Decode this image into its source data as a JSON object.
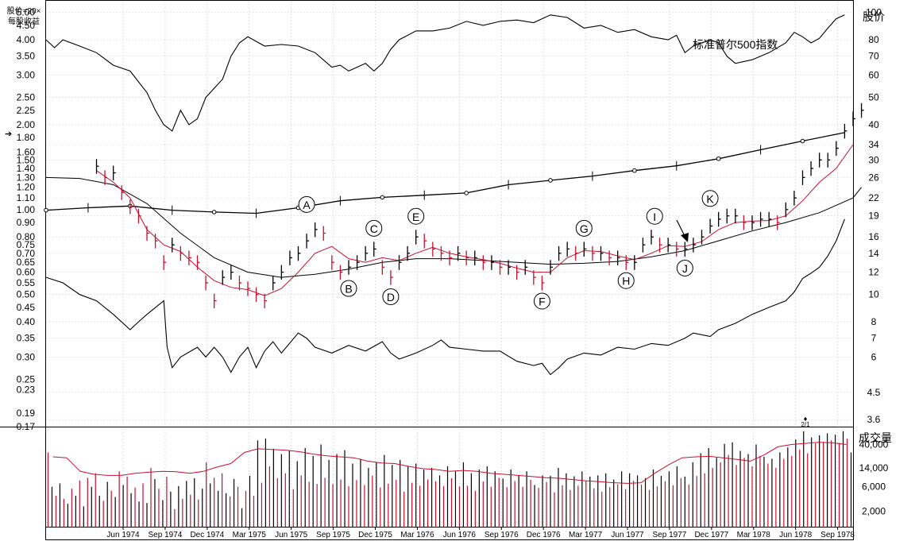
{
  "chart_data": {
    "type": "line",
    "price_panel": {
      "left_header": [
        "股价=20×",
        "每股收益"
      ],
      "left_ticks": [
        "5.00",
        "4.50",
        "4.00",
        "3.50",
        "3.00",
        "2.50",
        "2.25",
        "2.00",
        "1.80",
        "1.60",
        "1.50",
        "1.40",
        "1.30",
        "1.20",
        "1.10",
        "1.00",
        "0.90",
        "0.80",
        "0.75",
        "0.70",
        "0.65",
        "0.60",
        "0.55",
        "0.50",
        "0.45",
        "0.40",
        "0.35",
        "0.30",
        "0.25",
        "0.23",
        "0.19",
        "0.17"
      ],
      "right_title": "股价",
      "right_ticks": [
        "100",
        "80",
        "70",
        "60",
        "50",
        "40",
        "34",
        "30",
        "26",
        "22",
        "19",
        "16",
        "14",
        "12",
        "10",
        "8",
        "7",
        "6",
        "4.5",
        "3.6"
      ],
      "scale": "log",
      "index_label": "标准普尔500指数",
      "left_arrow": "➔",
      "annotations": [
        "A",
        "B",
        "C",
        "D",
        "E",
        "F",
        "G",
        "H",
        "I",
        "J",
        "K"
      ],
      "bottom_marker": {
        "symbol": "♦",
        "text": "2/1"
      }
    },
    "volume_panel": {
      "title": "成交量",
      "ticks": [
        "40,000",
        "14,000",
        "6,000",
        "2,000"
      ]
    },
    "x_ticks": [
      "Jun 1974",
      "Sep 1974",
      "Dec 1974",
      "Mar 1975",
      "Jun 1975",
      "Sep 1975",
      "Dec 1975",
      "Mar 1976",
      "Jun 1976",
      "Sep 1976",
      "Dec 1976",
      "Mar 1977",
      "Jun 1977",
      "Sep 1977",
      "Dec 1977",
      "Mar 1978",
      "Jun 1978",
      "Sep 1978"
    ],
    "price_weekly": [
      [
        1974.3,
        28.5
      ],
      [
        1974.35,
        26
      ],
      [
        1974.4,
        27
      ],
      [
        1974.45,
        23
      ],
      [
        1974.5,
        20.5
      ],
      [
        1974.55,
        19
      ],
      [
        1974.6,
        16.5
      ],
      [
        1974.65,
        15.5
      ],
      [
        1974.7,
        13
      ],
      [
        1974.75,
        15
      ],
      [
        1974.8,
        14
      ],
      [
        1974.85,
        13.5
      ],
      [
        1974.9,
        13
      ],
      [
        1974.95,
        11
      ],
      [
        1975.0,
        9.5
      ],
      [
        1975.05,
        11.5
      ],
      [
        1975.1,
        12
      ],
      [
        1975.15,
        11
      ],
      [
        1975.2,
        10.5
      ],
      [
        1975.25,
        10
      ],
      [
        1975.3,
        9.5
      ],
      [
        1975.35,
        11
      ],
      [
        1975.4,
        12
      ],
      [
        1975.45,
        13.5
      ],
      [
        1975.5,
        14
      ],
      [
        1975.55,
        15.5
      ],
      [
        1975.6,
        17
      ],
      [
        1975.65,
        16.5
      ],
      [
        1975.7,
        13
      ],
      [
        1975.75,
        12
      ],
      [
        1975.8,
        12.5
      ],
      [
        1975.85,
        13
      ],
      [
        1975.9,
        14
      ],
      [
        1975.95,
        14.5
      ],
      [
        1976.0,
        12.5
      ],
      [
        1976.05,
        11.5
      ],
      [
        1976.1,
        13
      ],
      [
        1976.15,
        14
      ],
      [
        1976.2,
        16
      ],
      [
        1976.25,
        15.5
      ],
      [
        1976.3,
        14.5
      ],
      [
        1976.35,
        14
      ],
      [
        1976.4,
        13.5
      ],
      [
        1976.45,
        14
      ],
      [
        1976.5,
        13.5
      ],
      [
        1976.55,
        13.5
      ],
      [
        1976.6,
        13
      ],
      [
        1976.65,
        13
      ],
      [
        1976.7,
        12.5
      ],
      [
        1976.75,
        12.5
      ],
      [
        1976.8,
        12
      ],
      [
        1976.85,
        12.5
      ],
      [
        1976.9,
        11.5
      ],
      [
        1976.95,
        11
      ],
      [
        1977.0,
        12.5
      ],
      [
        1977.05,
        14
      ],
      [
        1977.1,
        14.5
      ],
      [
        1977.15,
        14
      ],
      [
        1977.2,
        14.5
      ],
      [
        1977.25,
        14
      ],
      [
        1977.3,
        14
      ],
      [
        1977.35,
        13.5
      ],
      [
        1977.4,
        13.5
      ],
      [
        1977.45,
        13
      ],
      [
        1977.5,
        13
      ],
      [
        1977.55,
        15
      ],
      [
        1977.6,
        16
      ],
      [
        1977.65,
        15
      ],
      [
        1977.7,
        15
      ],
      [
        1977.75,
        14.5
      ],
      [
        1977.8,
        14.5
      ],
      [
        1977.85,
        15
      ],
      [
        1977.9,
        16
      ],
      [
        1977.95,
        17.5
      ],
      [
        1978.0,
        18.5
      ],
      [
        1978.05,
        19
      ],
      [
        1978.1,
        19
      ],
      [
        1978.15,
        18
      ],
      [
        1978.2,
        18
      ],
      [
        1978.25,
        18.5
      ],
      [
        1978.3,
        18.5
      ],
      [
        1978.35,
        18
      ],
      [
        1978.4,
        20
      ],
      [
        1978.45,
        22
      ],
      [
        1978.5,
        26
      ],
      [
        1978.55,
        28
      ],
      [
        1978.6,
        30
      ],
      [
        1978.65,
        30
      ],
      [
        1978.7,
        33
      ],
      [
        1978.75,
        38
      ],
      [
        1978.8,
        42
      ],
      [
        1978.85,
        45
      ]
    ],
    "sp500": [
      [
        1974.0,
        80
      ],
      [
        1974.05,
        75
      ],
      [
        1974.1,
        80
      ],
      [
        1974.2,
        76
      ],
      [
        1974.3,
        72
      ],
      [
        1974.4,
        65
      ],
      [
        1974.5,
        62
      ],
      [
        1974.6,
        52
      ],
      [
        1974.65,
        45
      ],
      [
        1974.7,
        40
      ],
      [
        1974.75,
        38
      ],
      [
        1974.8,
        45
      ],
      [
        1974.85,
        40
      ],
      [
        1974.9,
        42
      ],
      [
        1974.95,
        50
      ],
      [
        1975.05,
        58
      ],
      [
        1975.1,
        70
      ],
      [
        1975.15,
        78
      ],
      [
        1975.2,
        82
      ],
      [
        1975.3,
        76
      ],
      [
        1975.4,
        77
      ],
      [
        1975.5,
        76
      ],
      [
        1975.6,
        72
      ],
      [
        1975.7,
        64
      ],
      [
        1975.75,
        65
      ],
      [
        1975.8,
        62
      ],
      [
        1975.9,
        66
      ],
      [
        1975.95,
        62
      ],
      [
        1976.0,
        66
      ],
      [
        1976.05,
        74
      ],
      [
        1976.1,
        80
      ],
      [
        1976.2,
        86
      ],
      [
        1976.3,
        86
      ],
      [
        1976.4,
        88
      ],
      [
        1976.5,
        93
      ],
      [
        1976.6,
        90
      ],
      [
        1976.7,
        93
      ],
      [
        1976.8,
        94
      ],
      [
        1976.9,
        92
      ],
      [
        1977.0,
        98
      ],
      [
        1977.1,
        96
      ],
      [
        1977.2,
        88
      ],
      [
        1977.3,
        90
      ],
      [
        1977.4,
        85
      ],
      [
        1977.5,
        87
      ],
      [
        1977.6,
        82
      ],
      [
        1977.7,
        80
      ],
      [
        1977.75,
        83
      ],
      [
        1977.8,
        72
      ],
      [
        1977.85,
        76
      ],
      [
        1977.95,
        80
      ],
      [
        1978.0,
        78
      ],
      [
        1978.05,
        70
      ],
      [
        1978.1,
        66
      ],
      [
        1978.2,
        68
      ],
      [
        1978.3,
        72
      ],
      [
        1978.4,
        78
      ],
      [
        1978.45,
        85
      ],
      [
        1978.5,
        82
      ],
      [
        1978.55,
        78
      ],
      [
        1978.6,
        81
      ],
      [
        1978.65,
        88
      ],
      [
        1978.7,
        95
      ],
      [
        1978.75,
        98
      ]
    ],
    "eps": [
      [
        1974.0,
        19.9
      ],
      [
        1974.25,
        20.3
      ],
      [
        1974.5,
        20.6
      ],
      [
        1974.75,
        19.9
      ],
      [
        1975.0,
        19.6
      ],
      [
        1975.25,
        19.4
      ],
      [
        1975.5,
        20.3
      ],
      [
        1975.75,
        21.5
      ],
      [
        1976.0,
        22.1
      ],
      [
        1976.25,
        22.5
      ],
      [
        1976.5,
        22.9
      ],
      [
        1976.75,
        24.5
      ],
      [
        1977.0,
        25.4
      ],
      [
        1977.25,
        26.3
      ],
      [
        1977.5,
        27.5
      ],
      [
        1977.75,
        28.6
      ],
      [
        1978.0,
        30.3
      ],
      [
        1978.25,
        32.6
      ],
      [
        1978.5,
        35.0
      ],
      [
        1978.75,
        37.5
      ]
    ],
    "rs_line": [
      [
        1974.0,
        11.5
      ],
      [
        1974.1,
        11
      ],
      [
        1974.2,
        10
      ],
      [
        1974.3,
        9.5
      ],
      [
        1974.4,
        8.5
      ],
      [
        1974.5,
        7.5
      ],
      [
        1974.55,
        8
      ],
      [
        1974.6,
        8.5
      ],
      [
        1974.7,
        9.5
      ],
      [
        1974.72,
        6.5
      ],
      [
        1974.75,
        5.5
      ],
      [
        1974.8,
        6
      ],
      [
        1974.9,
        6.5
      ],
      [
        1974.95,
        6
      ],
      [
        1975.0,
        6.5
      ],
      [
        1975.05,
        6
      ],
      [
        1975.1,
        5.3
      ],
      [
        1975.15,
        6
      ],
      [
        1975.2,
        6.5
      ],
      [
        1975.25,
        5.5
      ],
      [
        1975.3,
        6.3
      ],
      [
        1975.35,
        6.8
      ],
      [
        1975.4,
        6.2
      ],
      [
        1975.5,
        7.3
      ],
      [
        1975.55,
        7
      ],
      [
        1975.6,
        6.5
      ],
      [
        1975.7,
        6.2
      ],
      [
        1975.8,
        6.6
      ],
      [
        1975.9,
        6.3
      ],
      [
        1976.0,
        6.8
      ],
      [
        1976.05,
        6.2
      ],
      [
        1976.1,
        5.9
      ],
      [
        1976.2,
        6.2
      ],
      [
        1976.3,
        6.6
      ],
      [
        1976.35,
        6.9
      ],
      [
        1976.4,
        6.5
      ],
      [
        1976.5,
        6.4
      ],
      [
        1976.6,
        6.3
      ],
      [
        1976.7,
        6.3
      ],
      [
        1976.8,
        5.8
      ],
      [
        1976.9,
        5.6
      ],
      [
        1976.95,
        5.7
      ],
      [
        1977.0,
        5.2
      ],
      [
        1977.05,
        5.5
      ],
      [
        1977.1,
        5.9
      ],
      [
        1977.2,
        6.2
      ],
      [
        1977.3,
        6.1
      ],
      [
        1977.4,
        6.5
      ],
      [
        1977.5,
        6.4
      ],
      [
        1977.6,
        6.7
      ],
      [
        1977.7,
        6.6
      ],
      [
        1977.8,
        7
      ],
      [
        1977.85,
        7.3
      ],
      [
        1977.95,
        7.1
      ],
      [
        1978.0,
        7.5
      ],
      [
        1978.1,
        7.9
      ],
      [
        1978.2,
        8.5
      ],
      [
        1978.3,
        9
      ],
      [
        1978.4,
        9.5
      ],
      [
        1978.45,
        10.2
      ],
      [
        1978.5,
        11.4
      ],
      [
        1978.55,
        11.9
      ],
      [
        1978.6,
        12.5
      ],
      [
        1978.65,
        13.7
      ],
      [
        1978.7,
        15.5
      ],
      [
        1978.75,
        18.5
      ]
    ],
    "ma_red": [
      [
        1974.3,
        27.5
      ],
      [
        1974.4,
        25
      ],
      [
        1974.5,
        22
      ],
      [
        1974.6,
        17
      ],
      [
        1974.7,
        15
      ],
      [
        1974.8,
        14.2
      ],
      [
        1974.9,
        12.5
      ],
      [
        1975.0,
        11.2
      ],
      [
        1975.1,
        10.6
      ],
      [
        1975.2,
        10.4
      ],
      [
        1975.3,
        9.9
      ],
      [
        1975.4,
        10.5
      ],
      [
        1975.5,
        12
      ],
      [
        1975.6,
        14
      ],
      [
        1975.7,
        14.8
      ],
      [
        1975.8,
        13.4
      ],
      [
        1975.9,
        13
      ],
      [
        1976.0,
        13.5
      ],
      [
        1976.1,
        13.2
      ],
      [
        1976.2,
        14
      ],
      [
        1976.3,
        14.7
      ],
      [
        1976.4,
        14
      ],
      [
        1976.5,
        13.6
      ],
      [
        1976.6,
        13.3
      ],
      [
        1976.7,
        12.9
      ],
      [
        1976.8,
        12.4
      ],
      [
        1976.9,
        12
      ],
      [
        1977.0,
        12
      ],
      [
        1977.1,
        13.5
      ],
      [
        1977.2,
        14.3
      ],
      [
        1977.3,
        14.2
      ],
      [
        1977.4,
        13.7
      ],
      [
        1977.5,
        13.3
      ],
      [
        1977.6,
        14
      ],
      [
        1977.7,
        14.9
      ],
      [
        1977.8,
        14.8
      ],
      [
        1977.9,
        15.4
      ],
      [
        1978.0,
        17
      ],
      [
        1978.1,
        18
      ],
      [
        1978.2,
        18.2
      ],
      [
        1978.3,
        18.3
      ],
      [
        1978.4,
        19
      ],
      [
        1978.5,
        21.5
      ],
      [
        1978.6,
        25
      ],
      [
        1978.7,
        28
      ],
      [
        1978.8,
        34
      ]
    ],
    "ma_black": [
      [
        1974.0,
        26
      ],
      [
        1974.2,
        25.8
      ],
      [
        1974.4,
        24.5
      ],
      [
        1974.6,
        21
      ],
      [
        1974.8,
        16.5
      ],
      [
        1975.0,
        13.5
      ],
      [
        1975.2,
        12
      ],
      [
        1975.4,
        11.5
      ],
      [
        1975.6,
        11.8
      ],
      [
        1975.8,
        12.3
      ],
      [
        1976.0,
        13
      ],
      [
        1976.2,
        13.4
      ],
      [
        1976.4,
        13.4
      ],
      [
        1976.6,
        13.2
      ],
      [
        1976.8,
        13
      ],
      [
        1977.0,
        12.8
      ],
      [
        1977.2,
        12.9
      ],
      [
        1977.4,
        13.1
      ],
      [
        1977.6,
        13.6
      ],
      [
        1977.8,
        14.3
      ],
      [
        1978.0,
        15.5
      ],
      [
        1978.2,
        16.8
      ],
      [
        1978.4,
        18
      ],
      [
        1978.6,
        19.5
      ],
      [
        1978.8,
        22
      ],
      [
        1978.85,
        24
      ]
    ],
    "volume": [
      28000,
      6000,
      4000,
      7000,
      3500,
      2800,
      5500,
      4000,
      8000,
      2500,
      9000,
      6000,
      11000,
      4000,
      3200,
      7500,
      5000,
      3800,
      12000,
      6500,
      9500,
      4500,
      5800,
      3100,
      7000,
      2900,
      14000,
      8500,
      5500,
      3300,
      9500,
      4800,
      2200,
      6200,
      3500,
      7800,
      4200,
      8800,
      3400,
      5500,
      18000,
      7000,
      9000,
      5000,
      11000,
      4500,
      3900,
      8500,
      6000,
      2300,
      5000,
      9800,
      4000,
      48000,
      7200,
      52000,
      15000,
      33000,
      8800,
      26000,
      11000,
      30000,
      5400,
      19000,
      10000,
      34000,
      7500,
      24000,
      6800,
      40000,
      9000,
      20000,
      6800,
      26000,
      8300,
      31000,
      6200,
      17000,
      8100,
      21000,
      6500,
      14000,
      9900,
      18000,
      5800,
      25000,
      6900,
      16000,
      8200,
      20000,
      4800,
      15000,
      7200,
      17000,
      6300,
      13000,
      8300,
      14000,
      7700,
      10000,
      6200,
      15000,
      8800,
      12000,
      6100,
      18000,
      6300,
      11000,
      5000,
      13000,
      7600,
      15000,
      6000,
      12000,
      9000,
      8700,
      5900,
      13000,
      7800,
      10000,
      6000,
      12000,
      8200,
      6500,
      5700,
      10000,
      7400,
      9800,
      4700,
      14000,
      6400,
      11000,
      5200,
      9600,
      6300,
      12000,
      7800,
      9500,
      5600,
      10000,
      4800,
      11000,
      5900,
      8300,
      6700,
      12000,
      5400,
      11000,
      7900,
      10000,
      6600,
      8800,
      5200,
      13000,
      6100,
      9800,
      7700,
      12000,
      6400,
      15000,
      8800,
      9500,
      6600,
      18000,
      9700,
      27000,
      11000,
      34000,
      14000,
      22000,
      18000,
      41000,
      25000,
      44000,
      16000,
      30000,
      22000,
      26000,
      15000,
      40000,
      24000,
      23000,
      17000,
      21000,
      14000,
      28000,
      21000,
      35000,
      24000,
      50000,
      32000,
      72000,
      27000,
      55000,
      42000,
      60000,
      45000,
      66000,
      48000,
      62000,
      43000,
      72000,
      52000,
      28000
    ],
    "volume_ma": [
      23000,
      22000,
      12000,
      10500,
      10000,
      10000,
      11000,
      11500,
      12000,
      11800,
      11000,
      12000,
      14500,
      17000,
      28000,
      33000,
      32000,
      31000,
      29000,
      26000,
      24000,
      23000,
      22000,
      19000,
      17500,
      17000,
      15000,
      13500,
      13000,
      12000,
      12500,
      12000,
      11000,
      10500,
      10000,
      9500,
      9000,
      8800,
      8300,
      7800,
      7500,
      7200,
      7000,
      7200,
      11000,
      16000,
      22000,
      23000,
      23500,
      22000,
      20500,
      19000,
      25000,
      36000,
      40000,
      42000,
      44000,
      43000,
      40000
    ],
    "ylim_price": [
      3.4,
      110
    ],
    "xlim": [
      1974.0,
      1978.8
    ],
    "ylim_volume": [
      1000,
      80000
    ]
  }
}
